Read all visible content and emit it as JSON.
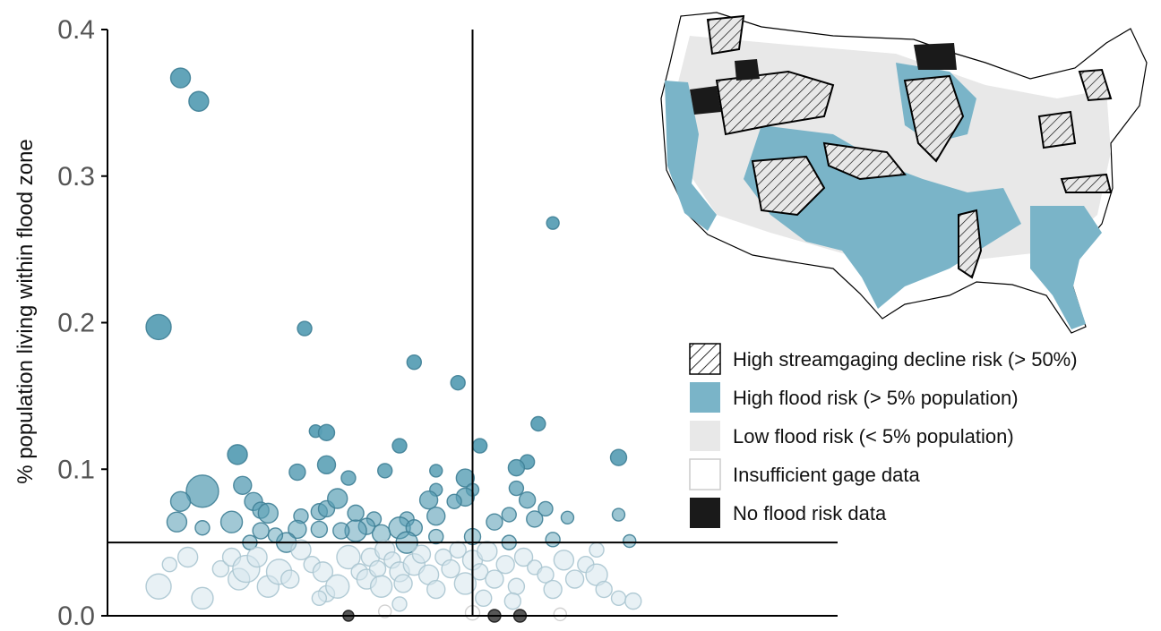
{
  "chart_data": {
    "type": "scatter",
    "title": "",
    "xlabel": "",
    "ylabel": "% population living within flood zone",
    "ylim": [
      0,
      0.4
    ],
    "yticks": [
      {
        "value": 0.0,
        "label": "0.0"
      },
      {
        "value": 0.1,
        "label": "0.1"
      },
      {
        "value": 0.2,
        "label": "0.2"
      },
      {
        "value": 0.3,
        "label": "0.3"
      },
      {
        "value": 0.4,
        "label": "0.4"
      }
    ],
    "xlim": [
      0,
      1
    ],
    "reference_lines": {
      "y": 0.05,
      "x": 0.5
    },
    "grid": false,
    "size_encoding": true,
    "colors": {
      "high_flood": "#5a9fb5",
      "low_flood": "#d6e6ec",
      "insufficient": "#ffffff",
      "no_data": "#1a1a1a",
      "map_low": "#e8e8e8",
      "map_high": "#7ab4c8",
      "axis": "#000000"
    },
    "points": [
      {
        "x": 0.1,
        "y": 0.367,
        "s": 11
      },
      {
        "x": 0.125,
        "y": 0.351,
        "s": 11
      },
      {
        "x": 0.07,
        "y": 0.197,
        "s": 14
      },
      {
        "x": 0.27,
        "y": 0.196,
        "s": 8
      },
      {
        "x": 0.42,
        "y": 0.173,
        "s": 8
      },
      {
        "x": 0.48,
        "y": 0.159,
        "s": 8
      },
      {
        "x": 0.61,
        "y": 0.268,
        "s": 7
      },
      {
        "x": 0.59,
        "y": 0.131,
        "s": 8
      },
      {
        "x": 0.4,
        "y": 0.116,
        "s": 8
      },
      {
        "x": 0.51,
        "y": 0.116,
        "s": 8
      },
      {
        "x": 0.7,
        "y": 0.108,
        "s": 9
      },
      {
        "x": 0.178,
        "y": 0.11,
        "s": 11
      },
      {
        "x": 0.285,
        "y": 0.126,
        "s": 7
      },
      {
        "x": 0.3,
        "y": 0.125,
        "s": 9
      },
      {
        "x": 0.3,
        "y": 0.103,
        "s": 10
      },
      {
        "x": 0.26,
        "y": 0.098,
        "s": 9
      },
      {
        "x": 0.38,
        "y": 0.099,
        "s": 8
      },
      {
        "x": 0.45,
        "y": 0.099,
        "s": 7
      },
      {
        "x": 0.49,
        "y": 0.094,
        "s": 10
      },
      {
        "x": 0.575,
        "y": 0.105,
        "s": 8
      },
      {
        "x": 0.56,
        "y": 0.101,
        "s": 9
      },
      {
        "x": 0.13,
        "y": 0.085,
        "s": 18
      },
      {
        "x": 0.1,
        "y": 0.078,
        "s": 11
      },
      {
        "x": 0.185,
        "y": 0.089,
        "s": 10
      },
      {
        "x": 0.33,
        "y": 0.094,
        "s": 8
      },
      {
        "x": 0.265,
        "y": 0.068,
        "s": 8
      },
      {
        "x": 0.5,
        "y": 0.086,
        "s": 7
      },
      {
        "x": 0.49,
        "y": 0.081,
        "s": 10
      },
      {
        "x": 0.56,
        "y": 0.087,
        "s": 8
      },
      {
        "x": 0.575,
        "y": 0.079,
        "s": 9
      },
      {
        "x": 0.45,
        "y": 0.086,
        "s": 7
      },
      {
        "x": 0.44,
        "y": 0.079,
        "s": 10
      },
      {
        "x": 0.2,
        "y": 0.078,
        "s": 10
      },
      {
        "x": 0.21,
        "y": 0.072,
        "s": 9
      },
      {
        "x": 0.22,
        "y": 0.07,
        "s": 11
      },
      {
        "x": 0.095,
        "y": 0.064,
        "s": 11
      },
      {
        "x": 0.17,
        "y": 0.064,
        "s": 12
      },
      {
        "x": 0.13,
        "y": 0.06,
        "s": 8
      },
      {
        "x": 0.29,
        "y": 0.071,
        "s": 9
      },
      {
        "x": 0.3,
        "y": 0.073,
        "s": 9
      },
      {
        "x": 0.315,
        "y": 0.08,
        "s": 11
      },
      {
        "x": 0.34,
        "y": 0.07,
        "s": 9
      },
      {
        "x": 0.365,
        "y": 0.066,
        "s": 8
      },
      {
        "x": 0.41,
        "y": 0.066,
        "s": 8
      },
      {
        "x": 0.45,
        "y": 0.068,
        "s": 10
      },
      {
        "x": 0.475,
        "y": 0.078,
        "s": 8
      },
      {
        "x": 0.53,
        "y": 0.064,
        "s": 9
      },
      {
        "x": 0.55,
        "y": 0.069,
        "s": 8
      },
      {
        "x": 0.6,
        "y": 0.073,
        "s": 8
      },
      {
        "x": 0.585,
        "y": 0.066,
        "s": 9
      },
      {
        "x": 0.63,
        "y": 0.067,
        "s": 7
      },
      {
        "x": 0.7,
        "y": 0.069,
        "s": 7
      },
      {
        "x": 0.715,
        "y": 0.051,
        "s": 7
      },
      {
        "x": 0.61,
        "y": 0.052,
        "s": 8
      },
      {
        "x": 0.55,
        "y": 0.05,
        "s": 8
      },
      {
        "x": 0.5,
        "y": 0.054,
        "s": 9
      },
      {
        "x": 0.45,
        "y": 0.054,
        "s": 8
      },
      {
        "x": 0.4,
        "y": 0.06,
        "s": 12
      },
      {
        "x": 0.375,
        "y": 0.056,
        "s": 10
      },
      {
        "x": 0.355,
        "y": 0.061,
        "s": 9
      },
      {
        "x": 0.34,
        "y": 0.058,
        "s": 12
      },
      {
        "x": 0.32,
        "y": 0.058,
        "s": 9
      },
      {
        "x": 0.29,
        "y": 0.059,
        "s": 9
      },
      {
        "x": 0.26,
        "y": 0.059,
        "s": 10
      },
      {
        "x": 0.245,
        "y": 0.05,
        "s": 11
      },
      {
        "x": 0.21,
        "y": 0.058,
        "s": 9
      },
      {
        "x": 0.195,
        "y": 0.05,
        "s": 8
      },
      {
        "x": 0.23,
        "y": 0.055,
        "s": 8
      },
      {
        "x": 0.42,
        "y": 0.06,
        "s": 9
      },
      {
        "x": 0.41,
        "y": 0.05,
        "s": 12
      },
      {
        "x": 0.07,
        "y": 0.02,
        "s": 14
      },
      {
        "x": 0.085,
        "y": 0.035,
        "s": 8
      },
      {
        "x": 0.11,
        "y": 0.04,
        "s": 11
      },
      {
        "x": 0.13,
        "y": 0.012,
        "s": 12
      },
      {
        "x": 0.155,
        "y": 0.032,
        "s": 9
      },
      {
        "x": 0.17,
        "y": 0.04,
        "s": 10
      },
      {
        "x": 0.18,
        "y": 0.025,
        "s": 12
      },
      {
        "x": 0.19,
        "y": 0.032,
        "s": 15
      },
      {
        "x": 0.205,
        "y": 0.04,
        "s": 11
      },
      {
        "x": 0.22,
        "y": 0.02,
        "s": 12
      },
      {
        "x": 0.235,
        "y": 0.03,
        "s": 14
      },
      {
        "x": 0.25,
        "y": 0.025,
        "s": 10
      },
      {
        "x": 0.265,
        "y": 0.045,
        "s": 11
      },
      {
        "x": 0.28,
        "y": 0.035,
        "s": 9
      },
      {
        "x": 0.295,
        "y": 0.03,
        "s": 11
      },
      {
        "x": 0.3,
        "y": 0.015,
        "s": 9
      },
      {
        "x": 0.315,
        "y": 0.02,
        "s": 13
      },
      {
        "x": 0.33,
        "y": 0.04,
        "s": 13
      },
      {
        "x": 0.345,
        "y": 0.03,
        "s": 9
      },
      {
        "x": 0.355,
        "y": 0.025,
        "s": 11
      },
      {
        "x": 0.36,
        "y": 0.04,
        "s": 10
      },
      {
        "x": 0.37,
        "y": 0.032,
        "s": 9
      },
      {
        "x": 0.375,
        "y": 0.02,
        "s": 12
      },
      {
        "x": 0.38,
        "y": 0.045,
        "s": 11
      },
      {
        "x": 0.39,
        "y": 0.038,
        "s": 9
      },
      {
        "x": 0.4,
        "y": 0.03,
        "s": 11
      },
      {
        "x": 0.405,
        "y": 0.022,
        "s": 10
      },
      {
        "x": 0.42,
        "y": 0.035,
        "s": 12
      },
      {
        "x": 0.43,
        "y": 0.042,
        "s": 10
      },
      {
        "x": 0.44,
        "y": 0.028,
        "s": 11
      },
      {
        "x": 0.45,
        "y": 0.018,
        "s": 10
      },
      {
        "x": 0.46,
        "y": 0.04,
        "s": 9
      },
      {
        "x": 0.47,
        "y": 0.032,
        "s": 10
      },
      {
        "x": 0.48,
        "y": 0.045,
        "s": 9
      },
      {
        "x": 0.49,
        "y": 0.022,
        "s": 12
      },
      {
        "x": 0.5,
        "y": 0.038,
        "s": 11
      },
      {
        "x": 0.51,
        "y": 0.03,
        "s": 9
      },
      {
        "x": 0.52,
        "y": 0.044,
        "s": 11
      },
      {
        "x": 0.53,
        "y": 0.025,
        "s": 10
      },
      {
        "x": 0.545,
        "y": 0.035,
        "s": 10
      },
      {
        "x": 0.56,
        "y": 0.02,
        "s": 9
      },
      {
        "x": 0.57,
        "y": 0.04,
        "s": 10
      },
      {
        "x": 0.585,
        "y": 0.033,
        "s": 8
      },
      {
        "x": 0.6,
        "y": 0.028,
        "s": 9
      },
      {
        "x": 0.61,
        "y": 0.018,
        "s": 10
      },
      {
        "x": 0.625,
        "y": 0.038,
        "s": 11
      },
      {
        "x": 0.64,
        "y": 0.025,
        "s": 10
      },
      {
        "x": 0.655,
        "y": 0.035,
        "s": 9
      },
      {
        "x": 0.67,
        "y": 0.028,
        "s": 12
      },
      {
        "x": 0.68,
        "y": 0.018,
        "s": 9
      },
      {
        "x": 0.7,
        "y": 0.012,
        "s": 8
      },
      {
        "x": 0.72,
        "y": 0.01,
        "s": 9
      },
      {
        "x": 0.67,
        "y": 0.045,
        "s": 8
      },
      {
        "x": 0.4,
        "y": 0.008,
        "s": 8
      },
      {
        "x": 0.515,
        "y": 0.012,
        "s": 9
      },
      {
        "x": 0.555,
        "y": 0.01,
        "s": 9
      },
      {
        "x": 0.29,
        "y": 0.012,
        "s": 8
      },
      {
        "x": 0.53,
        "y": 0.0,
        "s": 7,
        "cat": "no_data"
      },
      {
        "x": 0.565,
        "y": 0.0,
        "s": 7,
        "cat": "no_data"
      },
      {
        "x": 0.33,
        "y": 0.0,
        "s": 6,
        "cat": "no_data"
      },
      {
        "x": 0.5,
        "y": 0.002,
        "s": 8,
        "cat": "insufficient"
      },
      {
        "x": 0.62,
        "y": 0.001,
        "s": 7,
        "cat": "insufficient"
      },
      {
        "x": 0.38,
        "y": 0.003,
        "s": 7,
        "cat": "insufficient"
      }
    ],
    "legend": {
      "placement": "right",
      "entries": [
        {
          "label": "High streamgaging decline risk (> 50%)",
          "swatch": "hatched"
        },
        {
          "label": "High flood risk (> 5% population)",
          "swatch": "#7ab4c8"
        },
        {
          "label": "Low flood risk (< 5% population)",
          "swatch": "#e8e8e8"
        },
        {
          "label": "Insufficient gage data",
          "swatch": "#ffffff"
        },
        {
          "label": "No flood risk data",
          "swatch": "#1a1a1a"
        }
      ]
    },
    "inset_map": {
      "subject": "United States",
      "placement": "top-right"
    }
  }
}
